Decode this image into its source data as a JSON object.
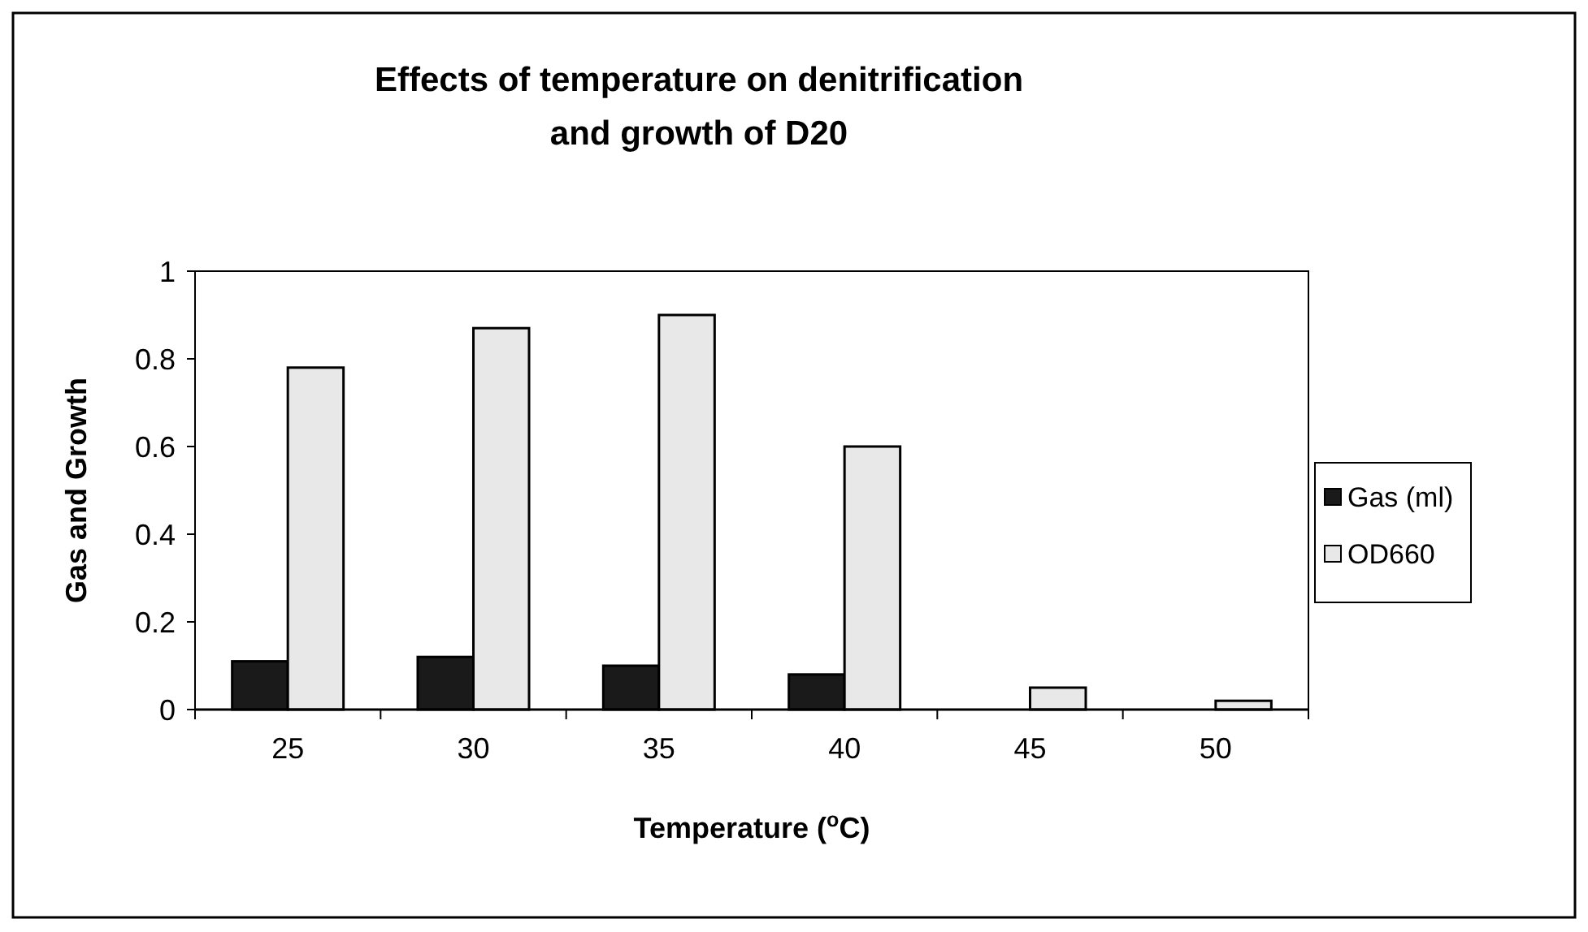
{
  "chart_data": {
    "type": "bar",
    "title": "Effects of temperature on denitrification and growth of D20",
    "xlabel": "Temperature ($^{o}$C)",
    "ylabel": "Gas and Growth",
    "categories": [
      "25",
      "30",
      "35",
      "40",
      "45",
      "50"
    ],
    "series": [
      {
        "name": "Gas (ml)",
        "color": "#1a1a1a",
        "values": [
          0.11,
          0.12,
          0.1,
          0.08,
          0,
          0
        ]
      },
      {
        "name": "OD660",
        "color": "#e8e8e8",
        "values": [
          0.78,
          0.87,
          0.9,
          0.6,
          0.05,
          0.02
        ]
      }
    ],
    "ylim": [
      0,
      1
    ],
    "yticks": [
      0,
      0.2,
      0.4,
      0.6,
      0.8,
      1
    ],
    "grid": false,
    "legend": "right"
  }
}
